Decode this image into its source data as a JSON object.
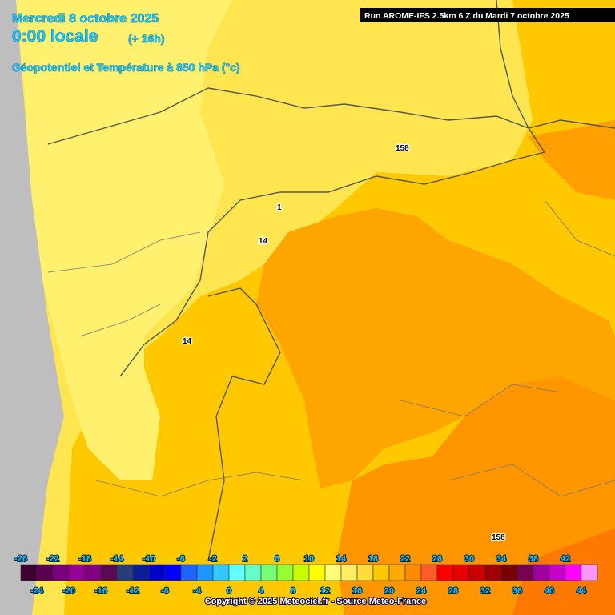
{
  "header": {
    "date": "Mercredi 8 octobre 2025",
    "time": "0:00 locale",
    "lead": "(+ 16h)",
    "field": "Géopotentiel et Température à 850 hPa (°c)",
    "run": "Run AROME-IFS 2.5km 6 Z du Mardi 7 octobre 2025"
  },
  "map_labels": [
    "158",
    "1",
    "14",
    "14",
    "158"
  ],
  "legend": {
    "steps": [
      {
        "value": -26,
        "color": "#3c0032"
      },
      {
        "value": -24,
        "color": "#5a0050"
      },
      {
        "value": -22,
        "color": "#78007a"
      },
      {
        "value": -20,
        "color": "#960096"
      },
      {
        "value": -18,
        "color": "#820082"
      },
      {
        "value": -16,
        "color": "#5a0a50"
      },
      {
        "value": -14,
        "color": "#283c78"
      },
      {
        "value": -12,
        "color": "#0a1e96"
      },
      {
        "value": -10,
        "color": "#0000c8"
      },
      {
        "value": -8,
        "color": "#0000ff"
      },
      {
        "value": -6,
        "color": "#1e64ff"
      },
      {
        "value": -4,
        "color": "#1e96ff"
      },
      {
        "value": -2,
        "color": "#32c8ff"
      },
      {
        "value": 0,
        "color": "#64ffff"
      },
      {
        "value": 2,
        "color": "#64ffc8"
      },
      {
        "value": 4,
        "color": "#78ff78"
      },
      {
        "value": 6,
        "color": "#96ff32"
      },
      {
        "value": 8,
        "color": "#c8ff00"
      },
      {
        "value": 10,
        "color": "#ffff00"
      },
      {
        "value": 12,
        "color": "#ffff78"
      },
      {
        "value": 14,
        "color": "#ffee64"
      },
      {
        "value": 16,
        "color": "#ffdc3c"
      },
      {
        "value": 18,
        "color": "#ffc800"
      },
      {
        "value": 20,
        "color": "#ffaa00"
      },
      {
        "value": 22,
        "color": "#ff8c00"
      },
      {
        "value": 24,
        "color": "#ff5a28"
      },
      {
        "value": 26,
        "color": "#ff0000"
      },
      {
        "value": 28,
        "color": "#e60000"
      },
      {
        "value": 30,
        "color": "#c80000"
      },
      {
        "value": 32,
        "color": "#a00000"
      },
      {
        "value": 34,
        "color": "#780000"
      },
      {
        "value": 36,
        "color": "#780050"
      },
      {
        "value": 38,
        "color": "#a000a0"
      },
      {
        "value": 40,
        "color": "#c800c8"
      },
      {
        "value": 42,
        "color": "#ff00ff"
      },
      {
        "value": 44,
        "color": "#ff96ff"
      }
    ]
  },
  "footer": "Copyright © 2025 Meteociel.fr - Source Meteo-France"
}
